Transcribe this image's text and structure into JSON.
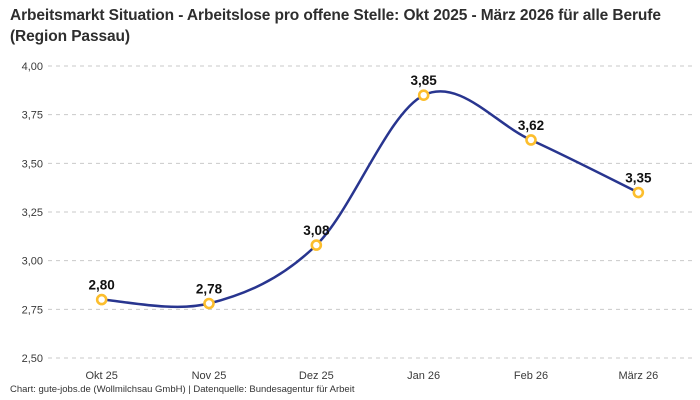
{
  "header": {
    "title": "Arbeitsmarkt Situation - Arbeitslose pro offene Stelle: Okt 2025 - März 2026 für alle Berufe (Region Passau)"
  },
  "footer": {
    "text": "Chart: gute-jobs.de (Wollmilchsau GmbH) | Datenquelle: Bundesagentur für Arbeit"
  },
  "chart_data": {
    "type": "line",
    "title": "Arbeitsmarkt Situation - Arbeitslose pro offene Stelle: Okt 2025 - März 2026 für alle Berufe (Region Passau)",
    "categories": [
      "Okt 25",
      "Nov 25",
      "Dez 25",
      "Jan 26",
      "Feb 26",
      "März 26"
    ],
    "values": [
      2.8,
      2.78,
      3.08,
      3.85,
      3.62,
      3.35
    ],
    "value_labels": [
      "2,80",
      "2,78",
      "3,08",
      "3,85",
      "3,62",
      "3,35"
    ],
    "y_ticks": [
      {
        "value": 4.0,
        "label": "4,00"
      },
      {
        "value": 3.75,
        "label": "3,75"
      },
      {
        "value": 3.5,
        "label": "3,50"
      },
      {
        "value": 3.25,
        "label": "3,25"
      },
      {
        "value": 3.0,
        "label": "3,00"
      },
      {
        "value": 2.75,
        "label": "2,75"
      },
      {
        "value": 2.5,
        "label": "2,50"
      }
    ],
    "ylim": [
      2.5,
      4.0
    ],
    "xlabel": "",
    "ylabel": "",
    "grid": "horizontal-dashed",
    "legend": "none",
    "line_color": "#28358f",
    "marker_ring_color": "#fcbe2d",
    "marker_fill_color": "#ffffff",
    "gridline_color": "#c9c9c9",
    "smoothing": "curved"
  }
}
